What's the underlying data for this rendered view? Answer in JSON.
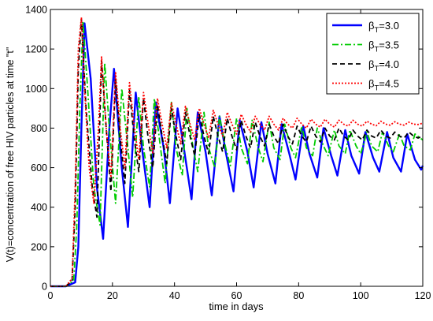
{
  "chart_data": {
    "type": "line",
    "xlabel": "time in days",
    "ylabel": "V(t)=concentration of free HIV particles at time \"t\"",
    "xlim": [
      0,
      120
    ],
    "ylim": [
      0,
      1400
    ],
    "xticks": [
      0,
      20,
      40,
      60,
      80,
      100,
      120
    ],
    "yticks": [
      0,
      200,
      400,
      600,
      800,
      1000,
      1200,
      1400
    ],
    "grid": false,
    "legend_position": "top-right",
    "series": [
      {
        "name": "βT=3.0",
        "legend_main": "β",
        "legend_sub": "T",
        "legend_rest": "=3.0",
        "color": "#0000ff",
        "dash": "solid",
        "x": [
          0,
          5,
          8,
          9,
          10,
          11,
          13,
          15,
          17,
          19,
          20.5,
          23,
          25,
          27.5,
          29.5,
          32,
          34,
          36.5,
          38.5,
          41,
          43,
          45.5,
          47.5,
          50,
          52,
          54.5,
          56.5,
          59,
          61,
          63.5,
          65.5,
          68,
          70,
          72.5,
          74.5,
          77,
          79,
          81.5,
          83.5,
          86,
          88,
          90.5,
          92.5,
          95,
          97,
          99.5,
          101.5,
          104,
          106,
          108.5,
          110.5,
          113,
          115,
          117.5,
          119.5,
          120
        ],
        "y": [
          0,
          0,
          20,
          200,
          800,
          1330,
          1050,
          500,
          240,
          800,
          1100,
          600,
          300,
          980,
          700,
          400,
          930,
          700,
          420,
          900,
          700,
          440,
          880,
          680,
          460,
          860,
          680,
          480,
          840,
          680,
          500,
          830,
          670,
          520,
          820,
          670,
          540,
          810,
          670,
          550,
          800,
          660,
          560,
          790,
          660,
          570,
          780,
          650,
          580,
          780,
          650,
          580,
          770,
          640,
          590,
          610
        ]
      },
      {
        "name": "βT=3.5",
        "legend_main": "β",
        "legend_sub": "T",
        "legend_rest": "=3.5",
        "color": "#00cc00",
        "dash": "8,3,2,3",
        "x": [
          0,
          5,
          7.5,
          8.5,
          9.5,
          10.5,
          12,
          14,
          16,
          17.5,
          19,
          21,
          23,
          25,
          26.5,
          28.5,
          30,
          32,
          33.5,
          35.5,
          37,
          39,
          40.5,
          42.5,
          44,
          46,
          47.5,
          49.5,
          51,
          53,
          54.5,
          56.5,
          58,
          60,
          61.5,
          63.5,
          65,
          67,
          68.5,
          70.5,
          72,
          74,
          75.5,
          77.5,
          79,
          81,
          82.5,
          84.5,
          86,
          88,
          89.5,
          91.5,
          93,
          95,
          96.5,
          98.5,
          100,
          102,
          103.5,
          105.5,
          107,
          109,
          110.5,
          112.5,
          114,
          116,
          117.5,
          120
        ],
        "y": [
          0,
          0,
          30,
          300,
          900,
          1340,
          1000,
          500,
          310,
          1130,
          800,
          420,
          1000,
          700,
          450,
          960,
          700,
          500,
          950,
          700,
          520,
          930,
          700,
          560,
          900,
          700,
          580,
          880,
          700,
          600,
          860,
          700,
          610,
          850,
          700,
          620,
          840,
          700,
          630,
          830,
          700,
          640,
          820,
          700,
          650,
          810,
          700,
          660,
          800,
          710,
          660,
          790,
          710,
          670,
          790,
          710,
          670,
          780,
          710,
          680,
          780,
          710,
          680,
          770,
          710,
          690,
          770,
          740
        ]
      },
      {
        "name": "βT=4.0",
        "legend_main": "β",
        "legend_sub": "T",
        "legend_rest": "=4.0",
        "color": "#000000",
        "dash": "6,4",
        "x": [
          0,
          5,
          7,
          8,
          9,
          10,
          11.5,
          13.5,
          15,
          16.5,
          18,
          19.5,
          21,
          22.5,
          24,
          25.5,
          27,
          28.5,
          30,
          31.5,
          33,
          34.5,
          36,
          37.5,
          39,
          40.5,
          42,
          43.5,
          45,
          46.5,
          48,
          49.5,
          51,
          52.5,
          54,
          55.5,
          57,
          58.5,
          60,
          61.5,
          63,
          64.5,
          66,
          67.5,
          69,
          70.5,
          72,
          73.5,
          75,
          76.5,
          78,
          79.5,
          81,
          82.5,
          84,
          85.5,
          87,
          88.5,
          90,
          91.5,
          93,
          94.5,
          96,
          97.5,
          99,
          100.5,
          102,
          103.5,
          105,
          106.5,
          108,
          109.5,
          111,
          112.5,
          114,
          115.5,
          117,
          118.5,
          120
        ],
        "y": [
          0,
          0,
          30,
          400,
          1100,
          1350,
          900,
          500,
          350,
          1140,
          800,
          480,
          1050,
          750,
          520,
          990,
          750,
          580,
          950,
          750,
          600,
          920,
          760,
          620,
          900,
          760,
          640,
          880,
          760,
          660,
          870,
          760,
          670,
          860,
          760,
          680,
          850,
          760,
          690,
          840,
          760,
          700,
          830,
          760,
          710,
          820,
          760,
          720,
          820,
          760,
          720,
          810,
          760,
          730,
          810,
          760,
          730,
          800,
          760,
          740,
          800,
          760,
          740,
          790,
          760,
          740,
          790,
          760,
          750,
          790,
          760,
          750,
          780,
          760,
          750,
          780,
          760,
          750,
          760
        ]
      },
      {
        "name": "βT=4.5",
        "legend_main": "β",
        "legend_sub": "T",
        "legend_rest": "=4.5",
        "color": "#ff0000",
        "dash": "2,2",
        "x": [
          0,
          5,
          7,
          8,
          9,
          10,
          11,
          12.5,
          14,
          15.5,
          16.5,
          18,
          19.5,
          21,
          22.5,
          24,
          25.5,
          27,
          28.5,
          30,
          31.5,
          33,
          34.5,
          36,
          37.5,
          39,
          40.5,
          42,
          43.5,
          45,
          46.5,
          48,
          49.5,
          51,
          52.5,
          54,
          55.5,
          57,
          58.5,
          60,
          61.5,
          63,
          64.5,
          66,
          67.5,
          69,
          70.5,
          72,
          73.5,
          75,
          76.5,
          78,
          79.5,
          81,
          82.5,
          84,
          85.5,
          87,
          88.5,
          90,
          91.5,
          93,
          94.5,
          96,
          97.5,
          99,
          100.5,
          102,
          103.5,
          105,
          106.5,
          108,
          109.5,
          111,
          112.5,
          114,
          115.5,
          117,
          118.5,
          120
        ],
        "y": [
          0,
          0,
          40,
          500,
          1200,
          1360,
          1000,
          600,
          420,
          800,
          1160,
          800,
          550,
          1080,
          800,
          600,
          1030,
          810,
          640,
          980,
          820,
          670,
          950,
          820,
          700,
          930,
          820,
          720,
          910,
          820,
          740,
          900,
          820,
          750,
          890,
          820,
          760,
          880,
          820,
          770,
          870,
          820,
          780,
          860,
          820,
          790,
          860,
          820,
          790,
          850,
          820,
          800,
          850,
          820,
          800,
          845,
          820,
          805,
          845,
          820,
          805,
          840,
          820,
          810,
          840,
          820,
          810,
          835,
          820,
          812,
          835,
          820,
          815,
          832,
          820,
          815,
          830,
          820,
          818,
          825
        ]
      }
    ]
  }
}
